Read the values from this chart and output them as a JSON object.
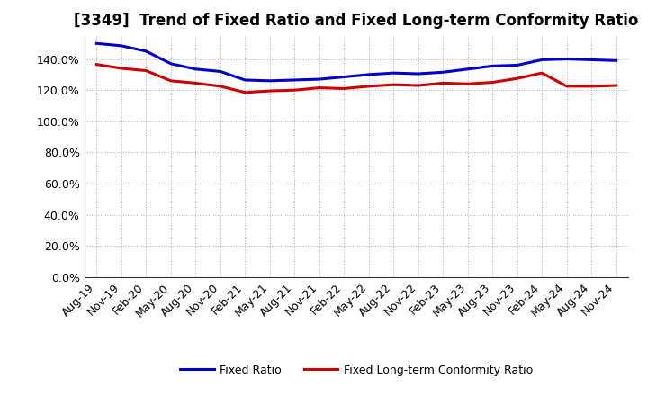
{
  "title": "[3349]  Trend of Fixed Ratio and Fixed Long-term Conformity Ratio",
  "x_labels": [
    "Aug-19",
    "Nov-19",
    "Feb-20",
    "May-20",
    "Aug-20",
    "Nov-20",
    "Feb-21",
    "May-21",
    "Aug-21",
    "Nov-21",
    "Feb-22",
    "May-22",
    "Aug-22",
    "Nov-22",
    "Feb-23",
    "May-23",
    "Aug-23",
    "Nov-23",
    "Feb-24",
    "May-24",
    "Aug-24",
    "Nov-24"
  ],
  "fixed_ratio": [
    150.0,
    148.5,
    145.0,
    137.0,
    133.5,
    132.0,
    126.5,
    126.0,
    126.5,
    127.0,
    128.5,
    130.0,
    131.0,
    130.5,
    131.5,
    133.5,
    135.5,
    136.0,
    139.5,
    140.0,
    139.5,
    139.0
  ],
  "fixed_lt_conformity": [
    136.5,
    134.0,
    132.5,
    126.0,
    124.5,
    122.5,
    118.5,
    119.5,
    120.0,
    121.5,
    121.0,
    122.5,
    123.5,
    123.0,
    124.5,
    124.0,
    125.0,
    127.5,
    131.0,
    122.5,
    122.5,
    123.0
  ],
  "fixed_ratio_color": "#0000CC",
  "fixed_lt_color": "#CC0000",
  "ylim": [
    0,
    155
  ],
  "yticks": [
    0,
    20,
    40,
    60,
    80,
    100,
    120,
    140
  ],
  "ytick_labels": [
    "0.0%",
    "20.0%",
    "40.0%",
    "60.0%",
    "80.0%",
    "100.0%",
    "120.0%",
    "140.0%"
  ],
  "legend_fixed_ratio": "Fixed Ratio",
  "legend_fixed_lt": "Fixed Long-term Conformity Ratio",
  "background_color": "#FFFFFF",
  "grid_color": "#999999",
  "line_width": 2.2,
  "title_fontsize": 12,
  "tick_fontsize": 9,
  "legend_fontsize": 9
}
